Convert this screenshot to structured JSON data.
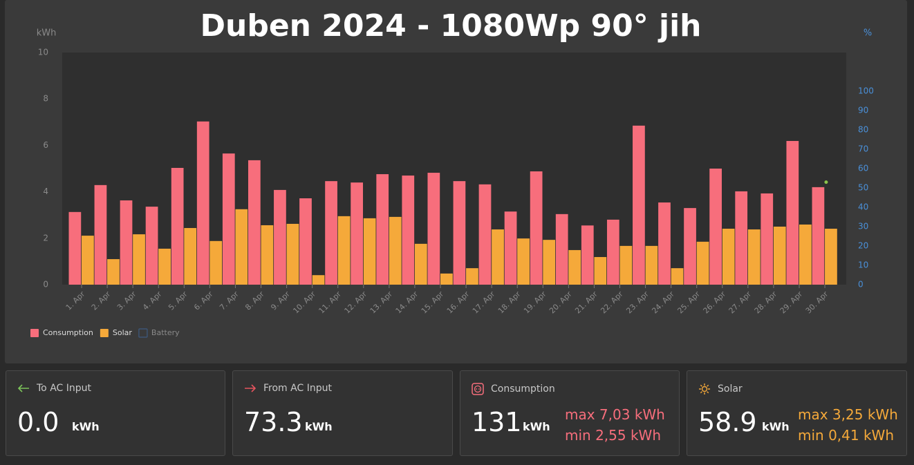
{
  "chart_data": {
    "type": "bar",
    "title": "Duben 2024 - 1080Wp 90° jih",
    "y_label": "kWh",
    "y2_label": "%",
    "categories": [
      "1. Apr",
      "2. Apr",
      "3. Apr",
      "4. Apr",
      "5. Apr",
      "6. Apr",
      "7. Apr",
      "8. Apr",
      "9. Apr",
      "10. Apr",
      "11. Apr",
      "12. Apr",
      "13. Apr",
      "14. Apr",
      "15. Apr",
      "16. Apr",
      "17. Apr",
      "18. Apr",
      "19. Apr",
      "20. Apr",
      "21. Apr",
      "22. Apr",
      "23. Apr",
      "24. Apr",
      "25. Apr",
      "26. Apr",
      "27. Apr",
      "28. Apr",
      "29. Apr",
      "30. Apr"
    ],
    "series": [
      {
        "name": "Consumption",
        "color": "#f76e7c",
        "values": [
          3.13,
          4.29,
          3.63,
          3.36,
          5.03,
          7.03,
          5.65,
          5.36,
          4.08,
          3.72,
          4.46,
          4.4,
          4.76,
          4.7,
          4.82,
          4.46,
          4.32,
          3.15,
          4.88,
          3.04,
          2.55,
          2.8,
          6.85,
          3.54,
          3.3,
          5.0,
          4.02,
          3.93,
          6.19,
          4.2
        ]
      },
      {
        "name": "Solar",
        "color": "#f5a93a",
        "values": [
          2.11,
          1.1,
          2.17,
          1.55,
          2.44,
          1.88,
          3.25,
          2.56,
          2.62,
          0.41,
          2.95,
          2.86,
          2.92,
          1.76,
          0.48,
          0.71,
          2.38,
          1.99,
          1.93,
          1.49,
          1.19,
          1.67,
          1.67,
          0.71,
          1.85,
          2.41,
          2.38,
          2.5,
          2.59,
          2.41
        ]
      },
      {
        "name": "Battery",
        "color": "#8bc34a",
        "axis": "y2",
        "values": [
          null,
          null,
          null,
          null,
          null,
          null,
          null,
          null,
          null,
          null,
          null,
          null,
          null,
          null,
          null,
          null,
          null,
          null,
          null,
          null,
          null,
          null,
          null,
          null,
          null,
          null,
          null,
          null,
          null,
          53
        ]
      }
    ],
    "ylim": [
      0,
      10
    ],
    "yticks": [
      0,
      2,
      4,
      6,
      8,
      10
    ],
    "y2lim": [
      0,
      120
    ],
    "y2ticks": [
      0,
      10,
      20,
      30,
      40,
      50,
      60,
      70,
      80,
      90,
      100
    ],
    "grid": false,
    "legend": "bottom-left"
  },
  "cards": [
    {
      "title": "To AC Input",
      "value": "0.0",
      "unit": "kWh"
    },
    {
      "title": "From AC Input",
      "value": "73.3",
      "unit": "kWh"
    },
    {
      "title": "Consumption",
      "value": "131",
      "unit": "kWh",
      "max": "max 7,03 kWh",
      "min": "min 2,55 kWh"
    },
    {
      "title": "Solar",
      "value": "58.9",
      "unit": "kWh",
      "max": "max 3,25 kWh",
      "min": "min 0,41 kWh"
    }
  ]
}
